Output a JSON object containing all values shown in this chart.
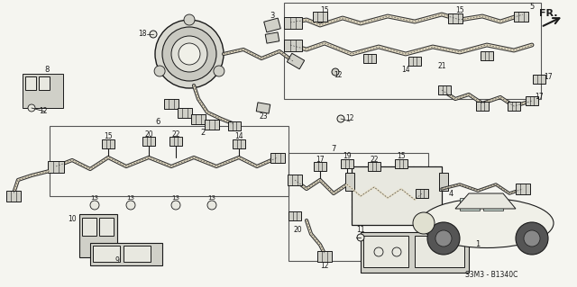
{
  "background_color": "#f5f5f0",
  "figsize": [
    6.4,
    3.19
  ],
  "dpi": 100,
  "part_number": "S3M3-B1340C",
  "direction_label": "FR.",
  "image_bg": "#f5f5f0",
  "line_color": "#1a1a1a",
  "fill_light": "#e8e8e0",
  "fill_medium": "#d0d0c8",
  "fill_dark": "#b0b0a8"
}
